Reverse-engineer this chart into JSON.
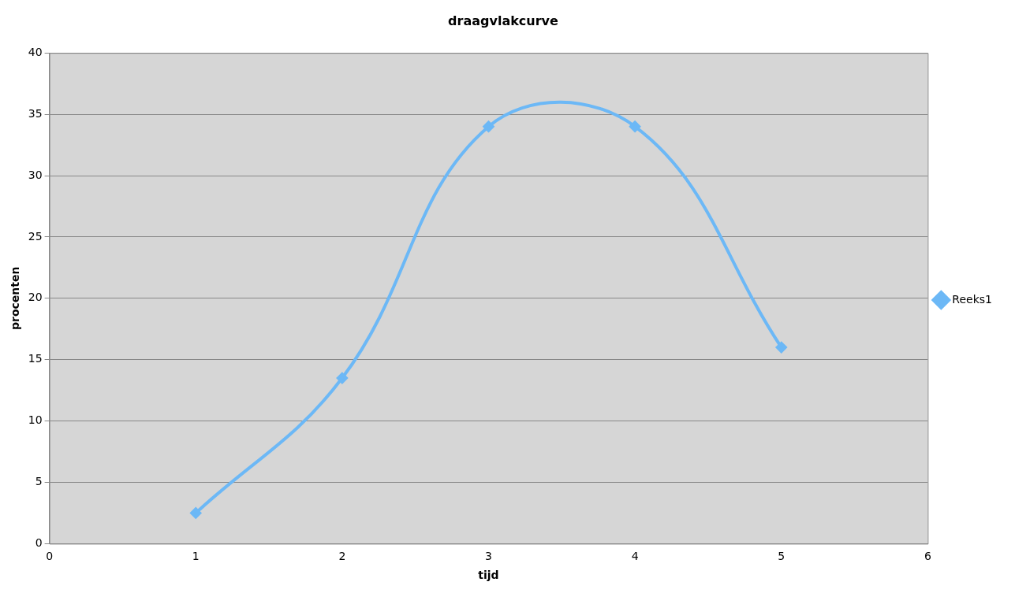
{
  "chart_data": {
    "type": "line",
    "title": "draagvlakcurve",
    "xlabel": "tijd",
    "ylabel": "procenten",
    "x": [
      1,
      2,
      3,
      4,
      5
    ],
    "series": [
      {
        "name": "Reeks1",
        "color": "#6cb8f6",
        "values": [
          2.5,
          13.5,
          34,
          34,
          16
        ]
      }
    ],
    "xlim": [
      0,
      6
    ],
    "xticks": [
      0,
      1,
      2,
      3,
      4,
      5,
      6
    ],
    "ylim": [
      0,
      40
    ],
    "yticks": [
      0,
      5,
      10,
      15,
      20,
      25,
      30,
      35,
      40
    ],
    "grid": "y",
    "legend": "right",
    "marker": "diamond",
    "line_style": "solid"
  }
}
